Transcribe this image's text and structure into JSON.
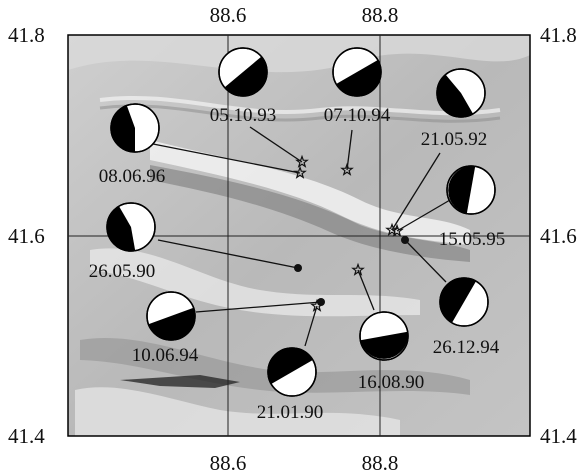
{
  "map": {
    "x_ticks": [
      "88.6",
      "88.8"
    ],
    "y_ticks": [
      "41.8",
      "41.6",
      "41.4"
    ],
    "events": [
      {
        "date": "05.10.93",
        "epicenter_symbol": "star"
      },
      {
        "date": "07.10.94",
        "epicenter_symbol": "star"
      },
      {
        "date": "21.05.92",
        "epicenter_symbol": "star"
      },
      {
        "date": "08.06.96",
        "epicenter_symbol": "star"
      },
      {
        "date": "15.05.95",
        "epicenter_symbol": "star"
      },
      {
        "date": "26.05.90",
        "epicenter_symbol": "dot"
      },
      {
        "date": "10.06.94",
        "epicenter_symbol": "dot"
      },
      {
        "date": "16.08.90",
        "epicenter_symbol": "star"
      },
      {
        "date": "26.12.94",
        "epicenter_symbol": "dot"
      },
      {
        "date": "21.01.90",
        "epicenter_symbol": "star"
      }
    ]
  },
  "colors": {
    "relief_light": "#e6e6e6",
    "relief_dark": "#8c8c8c",
    "grid": "#222222",
    "compression": "#000000"
  }
}
